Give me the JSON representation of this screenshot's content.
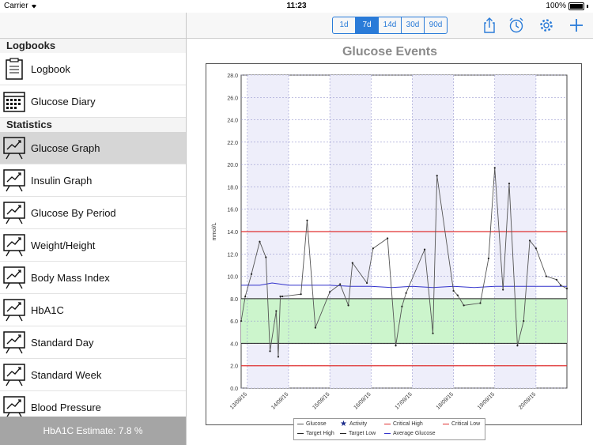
{
  "status_bar": {
    "carrier": "Carrier",
    "time": "11:23",
    "battery": "100%"
  },
  "sidebar": {
    "sections": [
      {
        "title": "Logbooks",
        "items": [
          {
            "label": "Logbook",
            "icon": "clipboard-icon"
          },
          {
            "label": "Glucose Diary",
            "icon": "calendar-icon"
          }
        ]
      },
      {
        "title": "Statistics",
        "items": [
          {
            "label": "Glucose Graph",
            "icon": "chart-icon",
            "active": true
          },
          {
            "label": "Insulin Graph",
            "icon": "chart-icon"
          },
          {
            "label": "Glucose By Period",
            "icon": "chart-icon"
          },
          {
            "label": "Weight/Height",
            "icon": "chart-icon"
          },
          {
            "label": "Body Mass Index",
            "icon": "chart-icon"
          },
          {
            "label": "HbA1C",
            "icon": "chart-icon"
          },
          {
            "label": "Standard Day",
            "icon": "chart-icon"
          },
          {
            "label": "Standard Week",
            "icon": "chart-icon"
          },
          {
            "label": "Blood Pressure",
            "icon": "chart-icon"
          }
        ]
      }
    ],
    "footer": "HbA1C Estimate: 7.8 %"
  },
  "toolbar": {
    "ranges": [
      "1d",
      "7d",
      "14d",
      "30d",
      "90d"
    ],
    "selected_range": "7d",
    "icons": [
      "share-icon",
      "alarm-icon",
      "gear-icon",
      "add-icon"
    ]
  },
  "colors": {
    "accent": "#2a7bd8",
    "critical": "#e03030",
    "average": "#3333cc",
    "target_band": "#ccf5cc"
  },
  "chart_data": {
    "type": "line",
    "title": "Glucose Events",
    "ylabel": "mmol/L",
    "ylim": [
      0,
      28
    ],
    "yticks": [
      "0.0",
      "2.0",
      "4.0",
      "6.0",
      "8.0",
      "10.0",
      "12.0",
      "14.0",
      "16.0",
      "18.0",
      "20.0",
      "22.0",
      "24.0",
      "26.0",
      "28.0"
    ],
    "x_labels": [
      "13/09/15",
      "14/09/15",
      "15/09/15",
      "16/09/15",
      "17/09/15",
      "18/09/15",
      "19/09/15",
      "20/09/15"
    ],
    "x_range_days": [
      -0.15,
      7.75
    ],
    "critical_high": 14.0,
    "critical_low": 2.0,
    "target_high": 8.0,
    "target_low": 4.0,
    "series": [
      {
        "name": "Glucose",
        "x": [
          -0.15,
          -0.05,
          0.1,
          0.3,
          0.45,
          0.55,
          0.7,
          0.75,
          0.8,
          0.85,
          1.3,
          1.45,
          1.65,
          2.0,
          2.25,
          2.45,
          2.55,
          2.9,
          3.05,
          3.4,
          3.6,
          3.75,
          3.85,
          4.3,
          4.5,
          4.6,
          5.0,
          5.1,
          5.25,
          5.65,
          5.85,
          6.0,
          6.2,
          6.35,
          6.55,
          6.7,
          6.85,
          7.0,
          7.25,
          7.5,
          7.6,
          7.75
        ],
        "y": [
          6.0,
          8.2,
          10.2,
          13.1,
          11.7,
          3.3,
          6.9,
          2.8,
          8.2,
          8.2,
          8.4,
          15.0,
          5.4,
          8.6,
          9.3,
          7.4,
          11.2,
          9.4,
          12.5,
          13.4,
          3.8,
          7.3,
          8.5,
          12.4,
          4.9,
          19.0,
          8.7,
          8.3,
          7.4,
          7.6,
          11.6,
          19.7,
          8.8,
          18.3,
          3.8,
          6.0,
          13.2,
          12.5,
          10.0,
          9.7,
          9.2,
          8.9
        ]
      },
      {
        "name": "Activity"
      },
      {
        "name": "Critical High"
      },
      {
        "name": "Critical Low"
      },
      {
        "name": "Target High"
      },
      {
        "name": "Target Low"
      },
      {
        "name": "Average Glucose",
        "x": [
          -0.15,
          0.3,
          0.6,
          1.0,
          1.5,
          2.0,
          2.5,
          3.0,
          3.5,
          4.0,
          4.5,
          5.0,
          5.5,
          6.0,
          6.5,
          7.0,
          7.5,
          7.75
        ],
        "y": [
          9.2,
          9.2,
          9.4,
          9.2,
          9.2,
          9.2,
          9.1,
          9.1,
          9.0,
          9.1,
          9.0,
          9.1,
          9.0,
          9.1,
          9.1,
          9.1,
          9.1,
          9.1
        ]
      }
    ],
    "legend": [
      "Glucose",
      "Activity",
      "Critical High",
      "Critical Low",
      "Target High",
      "Target Low",
      "Average Glucose"
    ],
    "legend_position": "bottom"
  }
}
